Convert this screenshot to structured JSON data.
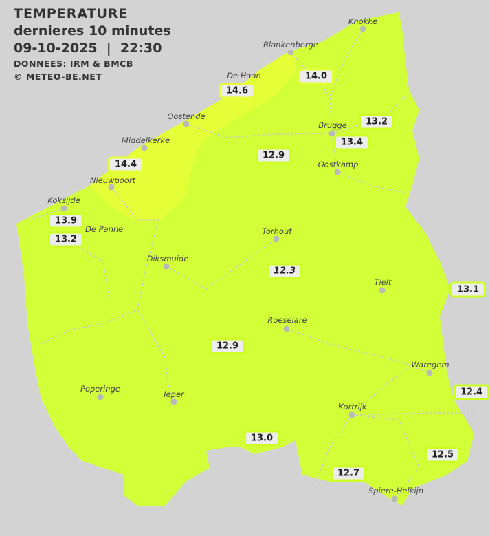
{
  "header": {
    "title": "TEMPERATURE",
    "subtitle": "dernieres 10 minutes",
    "datetime": "09-10-2025  |  22:30",
    "source": "DONNEES: IRM & BMCB",
    "copyright": "© METEO-BE.NET"
  },
  "colors": {
    "background": "#d3d3d3",
    "zone_12_14": "#d2ff38",
    "zone_14_15": "#e4ff38",
    "label_fill": "#ececec"
  },
  "cities": [
    "Knokke",
    "Blankenberge",
    "De Haan",
    "Oostende",
    "Middelkerke",
    "Nieuwpoort",
    "Koksijde",
    "De Panne",
    "Brugge",
    "Oostkamp",
    "Torhout",
    "Diksmuide",
    "Tielt",
    "Roeselare",
    "Waregem",
    "Poperinge",
    "Ieper",
    "Kortrijk",
    "Spiere-Helkijn"
  ],
  "temperatures": [
    "14.6",
    "14.0",
    "13.2",
    "13.4",
    "12.9",
    "14.4",
    "13.9",
    "13.2",
    "12.3",
    "13.1",
    "12.9",
    "12.4",
    "13.0",
    "12.5",
    "12.7"
  ]
}
